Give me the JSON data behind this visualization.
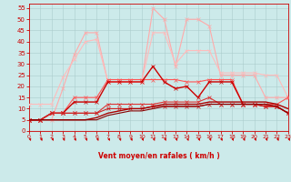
{
  "xlabel": "Vent moyen/en rafales ( km/h )",
  "xlim": [
    0,
    23
  ],
  "ylim": [
    0,
    57
  ],
  "yticks": [
    0,
    5,
    10,
    15,
    20,
    25,
    30,
    35,
    40,
    45,
    50,
    55
  ],
  "xticks": [
    0,
    1,
    2,
    3,
    4,
    5,
    6,
    7,
    8,
    9,
    10,
    11,
    12,
    13,
    14,
    15,
    16,
    17,
    18,
    19,
    20,
    21,
    22,
    23
  ],
  "bg_color": "#cceaea",
  "grid_color": "#aacccc",
  "red_dark": "#cc0000",
  "lines": [
    {
      "x": [
        0,
        1,
        2,
        3,
        4,
        5,
        6,
        7,
        8,
        9,
        10,
        11,
        12,
        13,
        14,
        15,
        16,
        17,
        18,
        19,
        20,
        21,
        22,
        23
      ],
      "y": [
        5,
        5,
        5,
        19,
        34,
        44,
        44,
        22,
        22,
        22,
        22,
        55,
        50,
        29,
        50,
        50,
        47,
        25,
        25,
        25,
        25,
        15,
        15,
        15
      ],
      "color": "#ffaaaa",
      "marker": "x",
      "lw": 0.8,
      "ms": 3.0
    },
    {
      "x": [
        0,
        1,
        2,
        3,
        4,
        5,
        6,
        7,
        8,
        9,
        10,
        11,
        12,
        13,
        14,
        15,
        16,
        17,
        18,
        19,
        20,
        21,
        22,
        23
      ],
      "y": [
        12,
        12,
        12,
        24,
        32,
        40,
        41,
        22,
        22,
        22,
        22,
        44,
        44,
        30,
        36,
        36,
        36,
        26,
        26,
        26,
        26,
        25,
        25,
        15
      ],
      "color": "#ffbbbb",
      "marker": "x",
      "lw": 0.8,
      "ms": 3.0
    },
    {
      "x": [
        0,
        1,
        2,
        3,
        4,
        5,
        6,
        7,
        8,
        9,
        10,
        11,
        12,
        13,
        14,
        15,
        16,
        17,
        18,
        19,
        20,
        21,
        22,
        23
      ],
      "y": [
        5,
        5,
        8,
        8,
        15,
        15,
        15,
        23,
        23,
        23,
        23,
        23,
        23,
        23,
        22,
        22,
        23,
        23,
        23,
        12,
        12,
        12,
        12,
        15
      ],
      "color": "#ff5555",
      "marker": "x",
      "lw": 0.8,
      "ms": 2.5
    },
    {
      "x": [
        0,
        1,
        2,
        3,
        4,
        5,
        6,
        7,
        8,
        9,
        10,
        11,
        12,
        13,
        14,
        15,
        16,
        17,
        18,
        19,
        20,
        21,
        22,
        23
      ],
      "y": [
        5,
        5,
        8,
        8,
        13,
        13,
        13,
        22,
        22,
        22,
        22,
        29,
        22,
        19,
        20,
        15,
        22,
        22,
        22,
        12,
        12,
        11,
        11,
        8
      ],
      "color": "#cc0000",
      "marker": "x",
      "lw": 1.0,
      "ms": 2.5
    },
    {
      "x": [
        0,
        1,
        2,
        3,
        4,
        5,
        6,
        7,
        8,
        9,
        10,
        11,
        12,
        13,
        14,
        15,
        16,
        17,
        18,
        19,
        20,
        21,
        22,
        23
      ],
      "y": [
        5,
        5,
        8,
        8,
        8,
        8,
        8,
        12,
        12,
        12,
        12,
        12,
        13,
        13,
        13,
        13,
        15,
        12,
        12,
        12,
        12,
        12,
        11,
        8
      ],
      "color": "#dd3333",
      "marker": "x",
      "lw": 0.8,
      "ms": 2.5
    },
    {
      "x": [
        0,
        1,
        2,
        3,
        4,
        5,
        6,
        7,
        8,
        9,
        10,
        11,
        12,
        13,
        14,
        15,
        16,
        17,
        18,
        19,
        20,
        21,
        22,
        23
      ],
      "y": [
        5,
        5,
        8,
        8,
        8,
        8,
        8,
        10,
        10,
        10,
        10,
        11,
        11,
        11,
        11,
        11,
        12,
        12,
        12,
        12,
        12,
        11,
        11,
        8
      ],
      "color": "#cc2222",
      "marker": "x",
      "lw": 0.8,
      "ms": 2.5
    },
    {
      "x": [
        0,
        1,
        2,
        3,
        4,
        5,
        6,
        7,
        8,
        9,
        10,
        11,
        12,
        13,
        14,
        15,
        16,
        17,
        18,
        19,
        20,
        21,
        22,
        23
      ],
      "y": [
        5,
        5,
        5,
        5,
        5,
        5,
        6,
        8,
        9,
        10,
        10,
        11,
        12,
        12,
        12,
        12,
        13,
        13,
        13,
        13,
        13,
        13,
        12,
        10
      ],
      "color": "#aa0000",
      "marker": null,
      "lw": 1.0,
      "ms": 0
    },
    {
      "x": [
        0,
        1,
        2,
        3,
        4,
        5,
        6,
        7,
        8,
        9,
        10,
        11,
        12,
        13,
        14,
        15,
        16,
        17,
        18,
        19,
        20,
        21,
        22,
        23
      ],
      "y": [
        5,
        5,
        5,
        5,
        5,
        5,
        5,
        7,
        8,
        9,
        9,
        10,
        11,
        11,
        11,
        11,
        12,
        12,
        12,
        12,
        12,
        12,
        11,
        8
      ],
      "color": "#880000",
      "marker": null,
      "lw": 0.8,
      "ms": 0
    }
  ]
}
